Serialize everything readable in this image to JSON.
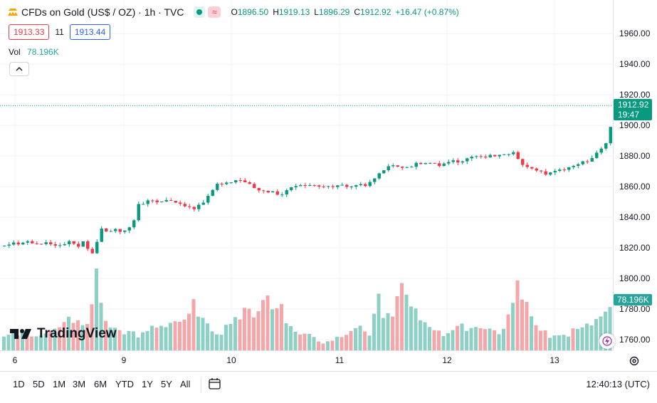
{
  "legend": {
    "symbol": "CFDs on Gold (US$ / OZ) · 1h · TVC",
    "open_key": "O",
    "open": "1896.50",
    "high_key": "H",
    "high": "1919.13",
    "low_key": "L",
    "low": "1896.29",
    "close_key": "C",
    "close": "1912.92",
    "change": "+16.47 (+0.87%)"
  },
  "price_boxes": {
    "bid": "1913.33",
    "spread": "11",
    "ask": "1913.44"
  },
  "volume": {
    "label": "Vol",
    "value": "78.196K"
  },
  "price_axis": {
    "ticks": [
      "1960.00",
      "1940.00",
      "1920.00",
      "1900.00",
      "1880.00",
      "1860.00",
      "1840.00",
      "1820.00",
      "1800.00",
      "1780.00",
      "1760.00"
    ],
    "last_price": "1912.92",
    "countdown": "19:47",
    "volume_label": "78.196K"
  },
  "time_axis": {
    "ticks": [
      "6",
      "9",
      "10",
      "11",
      "12",
      "13"
    ]
  },
  "ranges": [
    "1D",
    "5D",
    "1M",
    "3M",
    "6M",
    "YTD",
    "1Y",
    "5Y",
    "All"
  ],
  "clock": "12:40:13 (UTC)",
  "branding": {
    "logo_text": "TradingView"
  },
  "colors": {
    "up": "#089981",
    "down": "#f23645",
    "vol_up": "#8dd1c6",
    "vol_down": "#f5a6a8"
  },
  "chart_data": {
    "type": "candlestick",
    "timeframe": "1h",
    "ylim": [
      1753,
      1982
    ],
    "x_ticks": [
      "6",
      "9",
      "10",
      "11",
      "12",
      "13"
    ],
    "last_price": 1912.92,
    "path_points": [
      [
        0,
        1821
      ],
      [
        8,
        1822
      ],
      [
        12,
        1823
      ],
      [
        16,
        1824
      ],
      [
        18,
        1822
      ],
      [
        22,
        1823
      ],
      [
        26,
        1825
      ],
      [
        34,
        1823
      ],
      [
        40,
        1822
      ],
      [
        45,
        1823
      ],
      [
        50,
        1824
      ],
      [
        55,
        1822
      ],
      [
        60,
        1821
      ],
      [
        65,
        1822
      ],
      [
        70,
        1823
      ],
      [
        75,
        1824
      ],
      [
        80,
        1822
      ],
      [
        85,
        1821
      ],
      [
        88,
        1823
      ],
      [
        92,
        1825
      ],
      [
        94,
        1820
      ],
      [
        96,
        1818
      ],
      [
        98,
        1815
      ],
      [
        100,
        1818
      ],
      [
        103,
        1824
      ],
      [
        106,
        1826
      ],
      [
        108,
        1830
      ],
      [
        110,
        1834
      ],
      [
        113,
        1832
      ],
      [
        116,
        1830
      ],
      [
        120,
        1832
      ],
      [
        124,
        1833
      ],
      [
        128,
        1832
      ],
      [
        130,
        1830
      ],
      [
        132,
        1831
      ],
      [
        136,
        1832
      ],
      [
        139,
        1833
      ],
      [
        143,
        1833
      ],
      [
        146,
        1847
      ],
      [
        152,
        1849
      ],
      [
        157,
        1850
      ],
      [
        163,
        1851
      ],
      [
        169,
        1849
      ],
      [
        175,
        1850
      ],
      [
        181,
        1851
      ],
      [
        187,
        1850
      ],
      [
        193,
        1849
      ],
      [
        198,
        1848
      ],
      [
        204,
        1846
      ],
      [
        209,
        1845
      ],
      [
        214,
        1848
      ],
      [
        220,
        1850
      ],
      [
        224,
        1854
      ],
      [
        228,
        1858
      ],
      [
        233,
        1861
      ],
      [
        237,
        1862
      ],
      [
        242,
        1863
      ],
      [
        247,
        1862
      ],
      [
        252,
        1864
      ],
      [
        257,
        1865
      ],
      [
        262,
        1864
      ],
      [
        267,
        1862
      ],
      [
        272,
        1861
      ],
      [
        275,
        1859
      ],
      [
        278,
        1858
      ],
      [
        283,
        1857
      ],
      [
        287,
        1856
      ],
      [
        292,
        1857
      ],
      [
        296,
        1856
      ],
      [
        301,
        1855
      ],
      [
        306,
        1856
      ],
      [
        310,
        1858
      ],
      [
        315,
        1860
      ],
      [
        320,
        1861
      ],
      [
        325,
        1862
      ],
      [
        330,
        1861
      ],
      [
        335,
        1860
      ],
      [
        340,
        1860
      ],
      [
        345,
        1861
      ],
      [
        350,
        1860
      ],
      [
        355,
        1860
      ],
      [
        360,
        1860
      ],
      [
        365,
        1861
      ],
      [
        368,
        1862
      ],
      [
        372,
        1861
      ],
      [
        376,
        1860
      ],
      [
        380,
        1860
      ],
      [
        384,
        1861
      ],
      [
        388,
        1862
      ],
      [
        392,
        1861
      ],
      [
        396,
        1860
      ],
      [
        398,
        1862
      ],
      [
        401,
        1864
      ],
      [
        405,
        1866
      ],
      [
        409,
        1869
      ],
      [
        413,
        1871
      ],
      [
        417,
        1873
      ],
      [
        421,
        1875
      ],
      [
        425,
        1874
      ],
      [
        430,
        1873
      ],
      [
        435,
        1872
      ],
      [
        440,
        1873
      ],
      [
        445,
        1874
      ],
      [
        450,
        1875
      ],
      [
        455,
        1874
      ],
      [
        460,
        1875
      ],
      [
        465,
        1876
      ],
      [
        470,
        1875
      ],
      [
        475,
        1874
      ],
      [
        480,
        1875
      ],
      [
        485,
        1876
      ],
      [
        490,
        1877
      ],
      [
        495,
        1876
      ],
      [
        500,
        1877
      ],
      [
        505,
        1878
      ],
      [
        510,
        1879
      ],
      [
        515,
        1880
      ],
      [
        520,
        1879
      ],
      [
        525,
        1880
      ],
      [
        530,
        1881
      ],
      [
        535,
        1880
      ],
      [
        540,
        1881
      ],
      [
        545,
        1882
      ],
      [
        550,
        1881
      ],
      [
        553,
        1883
      ],
      [
        556,
        1882
      ],
      [
        559,
        1878
      ],
      [
        562,
        1875
      ],
      [
        566,
        1873
      ],
      [
        570,
        1872
      ],
      [
        575,
        1871
      ],
      [
        580,
        1870
      ],
      [
        585,
        1869
      ],
      [
        590,
        1868
      ],
      [
        595,
        1869
      ],
      [
        600,
        1870
      ],
      [
        605,
        1871
      ],
      [
        610,
        1872
      ],
      [
        615,
        1873
      ],
      [
        620,
        1874
      ],
      [
        625,
        1875
      ],
      [
        630,
        1876
      ],
      [
        635,
        1877
      ],
      [
        640,
        1880
      ],
      [
        643,
        1882
      ],
      [
        646,
        1883
      ],
      [
        649,
        1885
      ],
      [
        652,
        1887
      ],
      [
        655,
        1890
      ],
      [
        658,
        1896
      ],
      [
        661,
        1903
      ],
      [
        663,
        1912
      ]
    ],
    "volume_ylim": [
      0,
      105
    ],
    "volume_path": [
      [
        0,
        20
      ],
      [
        30,
        18
      ],
      [
        60,
        25
      ],
      [
        70,
        38
      ],
      [
        88,
        28
      ],
      [
        94,
        30
      ],
      [
        96,
        80
      ],
      [
        98,
        92
      ],
      [
        100,
        96
      ],
      [
        103,
        60
      ],
      [
        106,
        58
      ],
      [
        110,
        32
      ],
      [
        120,
        25
      ],
      [
        130,
        22
      ],
      [
        143,
        18
      ],
      [
        146,
        15
      ],
      [
        160,
        28
      ],
      [
        175,
        30
      ],
      [
        185,
        35
      ],
      [
        198,
        32
      ],
      [
        204,
        60
      ],
      [
        209,
        45
      ],
      [
        220,
        28
      ],
      [
        233,
        20
      ],
      [
        242,
        30
      ],
      [
        248,
        40
      ],
      [
        255,
        38
      ],
      [
        262,
        50
      ],
      [
        267,
        45
      ],
      [
        272,
        40
      ],
      [
        278,
        55
      ],
      [
        283,
        70
      ],
      [
        290,
        48
      ],
      [
        296,
        50
      ],
      [
        301,
        58
      ],
      [
        306,
        30
      ],
      [
        315,
        22
      ],
      [
        330,
        18
      ],
      [
        345,
        10
      ],
      [
        360,
        15
      ],
      [
        370,
        22
      ],
      [
        380,
        28
      ],
      [
        395,
        20
      ],
      [
        398,
        30
      ],
      [
        401,
        50
      ],
      [
        405,
        65
      ],
      [
        410,
        40
      ],
      [
        420,
        40
      ],
      [
        425,
        60
      ],
      [
        428,
        72
      ],
      [
        432,
        80
      ],
      [
        436,
        65
      ],
      [
        440,
        50
      ],
      [
        445,
        48
      ],
      [
        455,
        30
      ],
      [
        465,
        22
      ],
      [
        475,
        18
      ],
      [
        480,
        20
      ],
      [
        490,
        32
      ],
      [
        500,
        25
      ],
      [
        510,
        30
      ],
      [
        520,
        25
      ],
      [
        530,
        20
      ],
      [
        540,
        26
      ],
      [
        550,
        58
      ],
      [
        553,
        86
      ],
      [
        556,
        85
      ],
      [
        560,
        60
      ],
      [
        566,
        55
      ],
      [
        570,
        40
      ],
      [
        575,
        32
      ],
      [
        580,
        22
      ],
      [
        590,
        18
      ],
      [
        600,
        15
      ],
      [
        610,
        20
      ],
      [
        615,
        25
      ],
      [
        620,
        28
      ],
      [
        630,
        30
      ],
      [
        640,
        35
      ],
      [
        645,
        40
      ],
      [
        650,
        42
      ],
      [
        655,
        48
      ],
      [
        660,
        55
      ]
    ]
  }
}
